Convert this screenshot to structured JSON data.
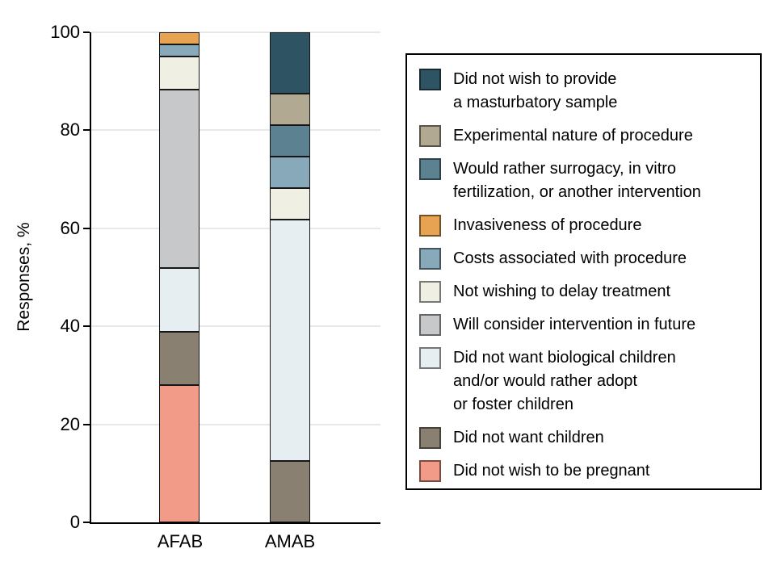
{
  "figure": {
    "background": "#ffffff",
    "axis_color": "#000000",
    "gridline_color": "#e8e8e8"
  },
  "chart_data": {
    "type": "bar",
    "subtype": "stacked",
    "title": "",
    "ylabel": "Responses, %",
    "xlabel": "",
    "ylim": [
      0,
      100
    ],
    "yticks": [
      0,
      20,
      40,
      60,
      80,
      100
    ],
    "grid": true,
    "legend_position": "right",
    "categories": [
      "AFAB",
      "AMAB"
    ],
    "series": [
      {
        "key": "did-not-wish-pregnant",
        "name": "Did not wish to be pregnant",
        "color": "#f29b88",
        "values": [
          28.3,
          0
        ]
      },
      {
        "key": "did-not-want-children",
        "name": "Did not want children",
        "color": "#8a8071",
        "values": [
          10.9,
          12.5
        ]
      },
      {
        "key": "no-biological-children",
        "name": "Did not want biological children and/or would rather adopt or foster children",
        "color": "#e7eef2",
        "values": [
          13.0,
          50.0
        ]
      },
      {
        "key": "consider-future",
        "name": "Will consider intervention in future",
        "color": "#c7c8ca",
        "values": [
          37.0,
          0
        ]
      },
      {
        "key": "not-delay-treatment",
        "name": "Not wishing to delay treatment",
        "color": "#f0efe4",
        "values": [
          6.5,
          6.25
        ]
      },
      {
        "key": "costs",
        "name": "Costs associated with procedure",
        "color": "#87a9ba",
        "values": [
          2.2,
          6.25
        ]
      },
      {
        "key": "invasiveness",
        "name": "Invasiveness of procedure",
        "color": "#e7a351",
        "values": [
          2.2,
          0
        ]
      },
      {
        "key": "surrogacy-ivf",
        "name": "Would rather surrogacy, in vitro fertilization, or another intervention",
        "color": "#5c8191",
        "values": [
          0,
          6.25
        ]
      },
      {
        "key": "experimental",
        "name": "Experimental nature of procedure",
        "color": "#b2a993",
        "values": [
          0,
          6.25
        ]
      },
      {
        "key": "masturbatory-sample",
        "name": "Did not wish to provide a masturbatory sample",
        "color": "#2e5464",
        "values": [
          0,
          12.5
        ]
      }
    ]
  },
  "legend": {
    "items": [
      {
        "key": "masturbatory-sample",
        "color": "#2e5464",
        "label": "Did not wish to provide\na masturbatory sample"
      },
      {
        "key": "experimental",
        "color": "#b2a993",
        "label": "Experimental nature of procedure"
      },
      {
        "key": "surrogacy-ivf",
        "color": "#5c8191",
        "label": "Would rather surrogacy, in vitro\nfertilization, or another intervention"
      },
      {
        "key": "invasiveness",
        "color": "#e7a351",
        "label": "Invasiveness of procedure"
      },
      {
        "key": "costs",
        "color": "#87a9ba",
        "label": "Costs associated with procedure"
      },
      {
        "key": "not-delay-treatment",
        "color": "#f0efe4",
        "label": "Not wishing to delay treatment"
      },
      {
        "key": "consider-future",
        "color": "#c7c8ca",
        "label": "Will consider intervention in future"
      },
      {
        "key": "no-biological-children",
        "color": "#e7eef2",
        "label": "Did not want biological children\nand/or would rather adopt\nor foster children"
      },
      {
        "key": "did-not-want-children",
        "color": "#8a8071",
        "label": "Did not want children"
      },
      {
        "key": "did-not-wish-pregnant",
        "color": "#f29b88",
        "label": "Did not wish to be pregnant"
      }
    ]
  }
}
